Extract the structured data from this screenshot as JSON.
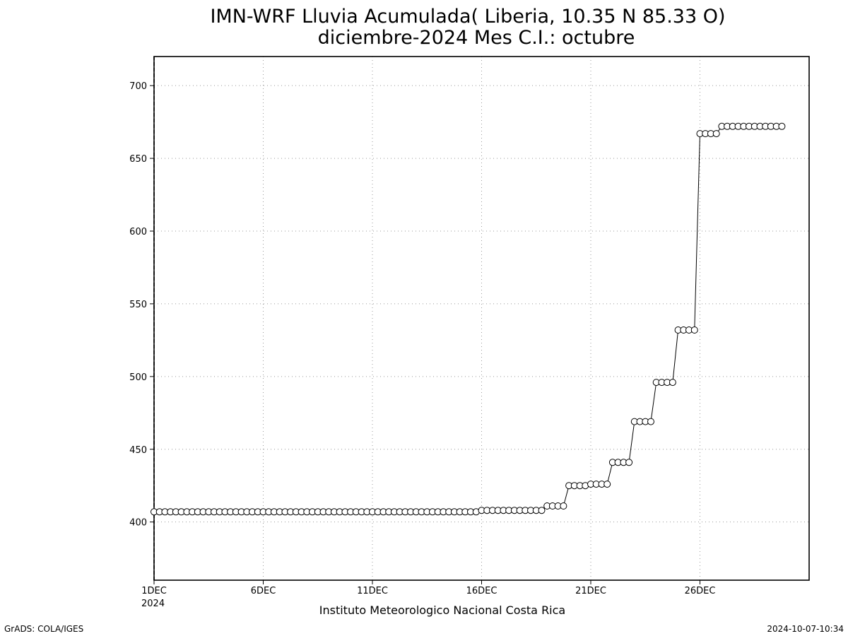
{
  "chart_data": {
    "type": "line",
    "title": "IMN-WRF  Lluvia Acumulada( Liberia, 10.35  N 85.33  O)",
    "subtitle": "diciembre-2024 Mes C.I.: octubre",
    "xlabel": "Instituto Meteorologico Nacional Costa Rica",
    "ylabel": "",
    "x_ticks": [
      "1DEC",
      "6DEC",
      "11DEC",
      "16DEC",
      "21DEC",
      "26DEC"
    ],
    "x_year_label": "2024",
    "x_unit": "day of December 2024",
    "xlim": [
      1,
      31
    ],
    "ylim": [
      360,
      720
    ],
    "y_ticks": [
      400,
      450,
      500,
      550,
      600,
      650,
      700
    ],
    "grid": true,
    "marker": "open-circle",
    "series": [
      {
        "step_hours": 6,
        "start_day": 1,
        "values": [
          407,
          407,
          407,
          407,
          407,
          407,
          407,
          407,
          407,
          407,
          407,
          407,
          407,
          407,
          407,
          407,
          407,
          407,
          407,
          407,
          407,
          407,
          407,
          407,
          407,
          407,
          407,
          407,
          407,
          407,
          407,
          407,
          407,
          407,
          407,
          407,
          407,
          407,
          407,
          407,
          407,
          407,
          407,
          407,
          407,
          407,
          407,
          407,
          407,
          407,
          407,
          407,
          407,
          407,
          407,
          407,
          407,
          407,
          407,
          407,
          408,
          408,
          408,
          408,
          408,
          408,
          408,
          408,
          408,
          408,
          408,
          408,
          411,
          411,
          411,
          411,
          425,
          425,
          425,
          425,
          426,
          426,
          426,
          426,
          441,
          441,
          441,
          441,
          469,
          469,
          469,
          469,
          496,
          496,
          496,
          496,
          532,
          532,
          532,
          532,
          667,
          667,
          667,
          667,
          672,
          672,
          672,
          672,
          672,
          672,
          672,
          672,
          672,
          672,
          672,
          672
        ]
      }
    ]
  },
  "footer": {
    "left": "GrADS: COLA/IGES",
    "right": "2024-10-07-10:34"
  }
}
